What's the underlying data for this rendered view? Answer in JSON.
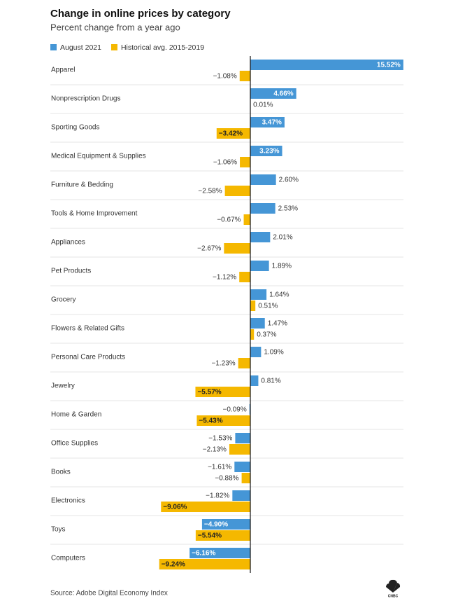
{
  "chart_data": {
    "type": "bar",
    "orientation": "horizontal",
    "title": "Change in online prices by category",
    "subtitle": "Percent change from a year ago",
    "categories": [
      "Apparel",
      "Nonprescription Drugs",
      "Sporting Goods",
      "Medical Equipment & Supplies",
      "Furniture & Bedding",
      "Tools & Home Improvement",
      "Appliances",
      "Pet Products",
      "Grocery",
      "Flowers & Related Gifts",
      "Personal Care Products",
      "Jewelry",
      "Home & Garden",
      "Office Supplies",
      "Books",
      "Electronics",
      "Toys",
      "Computers"
    ],
    "series": [
      {
        "name": "August 2021",
        "color": "#4596d6",
        "values": [
          15.52,
          4.66,
          3.47,
          3.23,
          2.6,
          2.53,
          2.01,
          1.89,
          1.64,
          1.47,
          1.09,
          0.81,
          -0.09,
          -1.53,
          -1.61,
          -1.82,
          -4.9,
          -6.16
        ],
        "value_labels": [
          "15.52%",
          "4.66%",
          "3.47%",
          "3.23%",
          "2.60%",
          "2.53%",
          "2.01%",
          "1.89%",
          "1.64%",
          "1.47%",
          "1.09%",
          "0.81%",
          "−0.09%",
          "−1.53%",
          "−1.61%",
          "−1.82%",
          "−4.90%",
          "−6.16%"
        ]
      },
      {
        "name": "Historical avg. 2015-2019",
        "color": "#f5b800",
        "values": [
          -1.08,
          0.01,
          -3.42,
          -1.06,
          -2.58,
          -0.67,
          -2.67,
          -1.12,
          0.51,
          0.37,
          -1.23,
          -5.57,
          -5.43,
          -2.13,
          -0.88,
          -9.06,
          -5.54,
          -9.24
        ],
        "value_labels": [
          "−1.08%",
          "0.01%",
          "−3.42%",
          "−1.06%",
          "−2.58%",
          "−0.67%",
          "−2.67%",
          "−1.12%",
          "0.51%",
          "0.37%",
          "−1.23%",
          "−5.57%",
          "−5.43%",
          "−2.13%",
          "−0.88%",
          "−9.06%",
          "−5.54%",
          "−9.24%"
        ]
      }
    ],
    "xlim": [
      -10,
      16
    ],
    "legend": "top-left",
    "source": "Source: Adobe Digital Economy Index",
    "logo_text": "CNBC"
  }
}
